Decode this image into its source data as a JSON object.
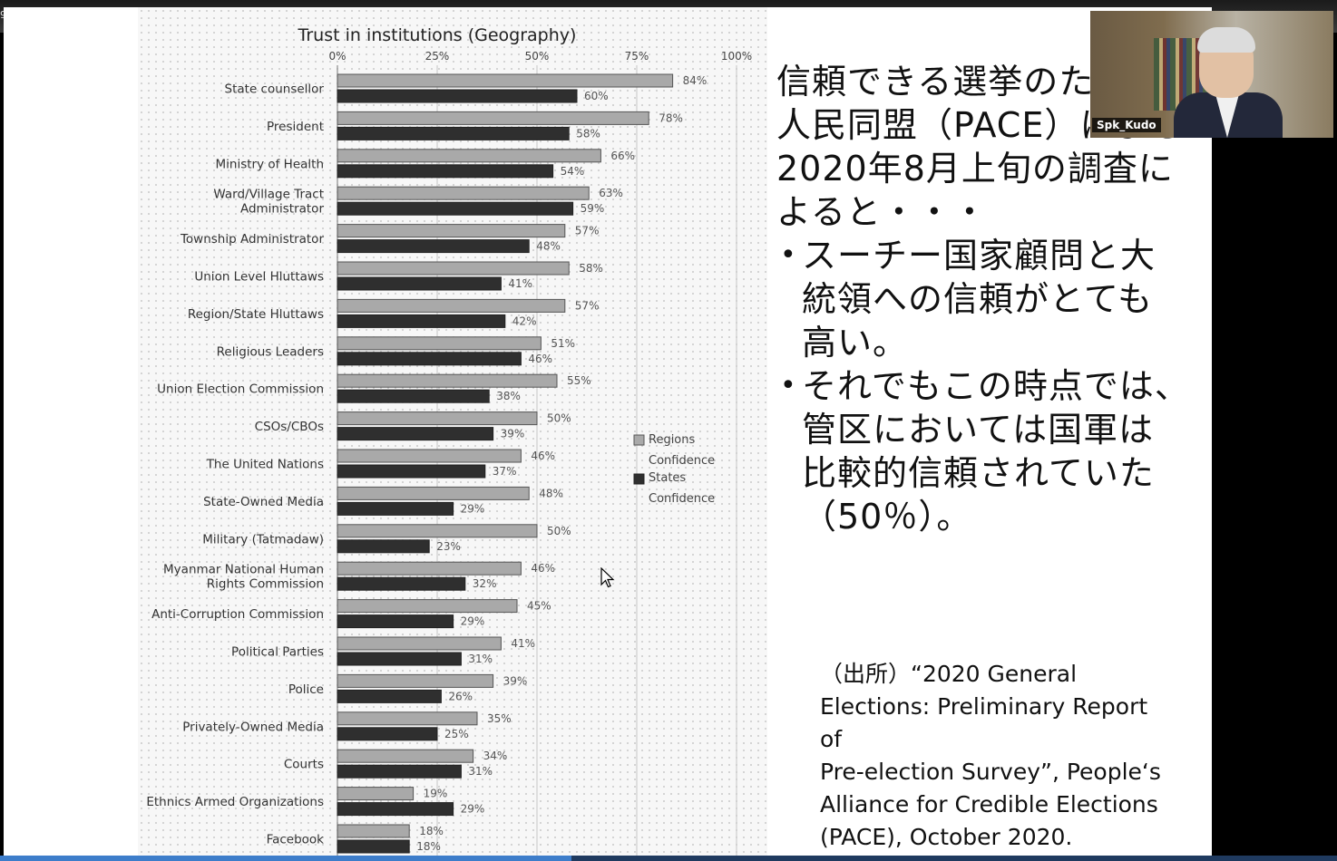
{
  "window": {
    "resolution_label": "920x1200"
  },
  "webcam": {
    "name": "Spk_Kudo"
  },
  "slide": {
    "intro_lines": [
      "信頼できる選挙のた",
      "人民同盟（PACE）による",
      "2020年8月上旬の調査に",
      "よると・・・"
    ],
    "bullets": [
      {
        "lines": [
          "スーチー国家顧問と大",
          "統領への信頼がとても",
          "高い。"
        ]
      },
      {
        "lines": [
          "それでもこの時点では、",
          "管区においては国軍は",
          "比較的信頼されていた",
          "（50％）。"
        ]
      }
    ],
    "bullet_symbol": "•",
    "source_text": "（出所）“2020 General\nElections: Preliminary Report\nof\nPre-election Survey”, People‘s\nAlliance for Credible Elections\n(PACE), October 2020."
  },
  "chart_data": {
    "type": "bar",
    "orientation": "horizontal",
    "title": "Trust in institutions (Geography)",
    "x_ticks": [
      "0%",
      "25%",
      "50%",
      "75%",
      "100%"
    ],
    "xlim": [
      0,
      100
    ],
    "legend_position": "right-middle",
    "categories": [
      [
        "State counsellor"
      ],
      [
        "President"
      ],
      [
        "Ministry of Health"
      ],
      [
        "Ward/Village Tract",
        "Administrator"
      ],
      [
        "Township Administrator"
      ],
      [
        "Union Level Hluttaws"
      ],
      [
        "Region/State Hluttaws"
      ],
      [
        "Religious Leaders"
      ],
      [
        "Union Election Commission"
      ],
      [
        "CSOs/CBOs"
      ],
      [
        "The United Nations"
      ],
      [
        "State-Owned Media"
      ],
      [
        "Military (Tatmadaw)"
      ],
      [
        "Myanmar National Human",
        "Rights Commission"
      ],
      [
        "Anti-Corruption Commission"
      ],
      [
        "Political Parties"
      ],
      [
        "Police"
      ],
      [
        "Privately-Owned Media"
      ],
      [
        "Courts"
      ],
      [
        "Ethnics Armed Organizations"
      ],
      [
        "Facebook"
      ]
    ],
    "series": [
      {
        "name": "Regions Confidence",
        "legend_lines": [
          "Regions",
          "Confidence"
        ],
        "color": "#a9a9a9",
        "values": [
          84,
          78,
          66,
          63,
          57,
          58,
          57,
          51,
          55,
          50,
          46,
          48,
          50,
          46,
          45,
          41,
          39,
          35,
          34,
          19,
          18
        ],
        "labels": [
          "84%",
          "78%",
          "66%",
          "63%",
          "57%",
          "58%",
          "57%",
          "51%",
          "55%",
          "50%",
          "46%",
          "48%",
          "50%",
          "46%",
          "45%",
          "41%",
          "39%",
          "35%",
          "34%",
          "19%",
          "18%"
        ]
      },
      {
        "name": "States Confidence",
        "legend_lines": [
          "States",
          "Confidence"
        ],
        "color": "#2f2f2f",
        "values": [
          60,
          58,
          54,
          59,
          48,
          41,
          42,
          46,
          38,
          39,
          37,
          29,
          23,
          32,
          29,
          31,
          26,
          25,
          31,
          29,
          18
        ],
        "labels": [
          "60%",
          "58%",
          "54%",
          "59%",
          "48%",
          "41%",
          "42%",
          "46%",
          "38%",
          "39%",
          "37%",
          "29%",
          "23%",
          "32%",
          "29%",
          "31%",
          "26%",
          "25%",
          "31%",
          "29%",
          "18%"
        ]
      }
    ]
  }
}
